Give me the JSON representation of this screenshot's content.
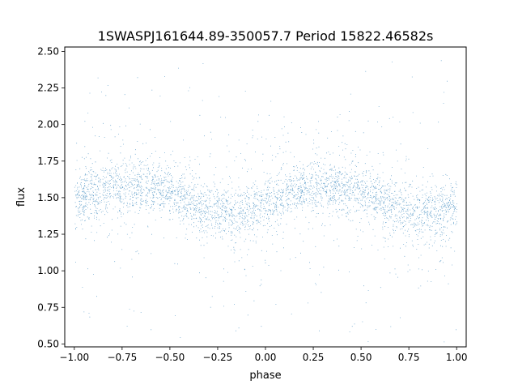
{
  "chart_data": {
    "type": "scatter",
    "title": "1SWASPJ161644.89-350057.7 Period 15822.46582s",
    "xlabel": "phase",
    "ylabel": "flux",
    "xlim": [
      -1.05,
      1.05
    ],
    "ylim": [
      0.48,
      2.53
    ],
    "xticks": [
      "−1.00",
      "−0.75",
      "−0.50",
      "−0.25",
      "0.00",
      "0.25",
      "0.50",
      "0.75",
      "1.00"
    ],
    "xtick_values": [
      -1.0,
      -0.75,
      -0.5,
      -0.25,
      0.0,
      0.25,
      0.5,
      0.75,
      1.0
    ],
    "yticks": [
      "0.50",
      "0.75",
      "1.00",
      "1.25",
      "1.50",
      "1.75",
      "2.00",
      "2.25",
      "2.50"
    ],
    "ytick_values": [
      0.5,
      0.75,
      1.0,
      1.25,
      1.5,
      1.75,
      2.0,
      2.25,
      2.5
    ],
    "grid": false,
    "legend": "none",
    "marker_color": "#1f77b4",
    "series": [
      {
        "description_of_trend_points": "folded light curve, phase vs flux",
        "x": [
          -1.0,
          -0.9,
          -0.8,
          -0.7,
          -0.6,
          -0.5,
          -0.4,
          -0.3,
          -0.2,
          -0.1,
          0.0,
          0.1,
          0.2,
          0.3,
          0.4,
          0.5,
          0.6,
          0.7,
          0.8,
          0.9,
          1.0
        ],
        "y": [
          1.5,
          1.54,
          1.57,
          1.59,
          1.58,
          1.54,
          1.48,
          1.42,
          1.39,
          1.4,
          1.45,
          1.51,
          1.56,
          1.59,
          1.58,
          1.54,
          1.48,
          1.42,
          1.39,
          1.4,
          1.45
        ]
      }
    ]
  }
}
